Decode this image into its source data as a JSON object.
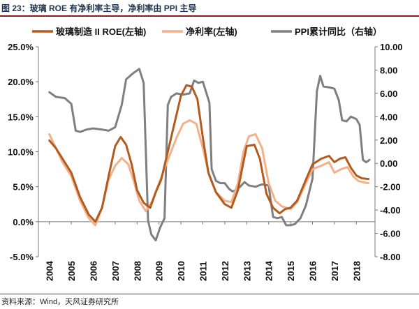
{
  "figure": {
    "title": "图 23：玻璃 ROE 有净利率主导，净利率由 PPI 主导",
    "source": "资料来源：Wind，天风证券研究所"
  },
  "chart_data": {
    "type": "line",
    "title": "",
    "xlabel": "",
    "ylabel": "",
    "x_labels": [
      "2004",
      "2005",
      "2006",
      "2007",
      "2008",
      "2009",
      "2010",
      "2011",
      "2012",
      "2013",
      "2014",
      "2015",
      "2016",
      "2017",
      "2018"
    ],
    "y_left": {
      "min": -0.05,
      "max": 0.25,
      "ticks": [
        "-5.0%",
        "0.0%",
        "5.0%",
        "10.0%",
        "15.0%",
        "20.0%",
        "25.0%"
      ]
    },
    "y_right": {
      "min": -8,
      "max": 10,
      "ticks": [
        "-8.00",
        "-6.00",
        "-4.00",
        "-2.00",
        "0.00",
        "2.00",
        "4.00",
        "6.00",
        "8.00",
        "10.00"
      ]
    },
    "legend_position": "top",
    "grid": false,
    "series": [
      {
        "name": "玻璃制造 II ROE(左轴)",
        "axis": "left",
        "color": "#b35a1f",
        "points": [
          [
            2004.0,
            0.116
          ],
          [
            2004.3,
            0.105
          ],
          [
            2004.6,
            0.09
          ],
          [
            2005.0,
            0.07
          ],
          [
            2005.4,
            0.035
          ],
          [
            2005.8,
            0.01
          ],
          [
            2006.1,
            0.0
          ],
          [
            2006.4,
            0.02
          ],
          [
            2006.7,
            0.065
          ],
          [
            2007.0,
            0.108
          ],
          [
            2007.25,
            0.121
          ],
          [
            2007.5,
            0.11
          ],
          [
            2007.75,
            0.082
          ],
          [
            2008.0,
            0.045
          ],
          [
            2008.3,
            0.027
          ],
          [
            2008.6,
            0.02
          ],
          [
            2008.85,
            0.042
          ],
          [
            2009.1,
            0.06
          ],
          [
            2009.4,
            0.1
          ],
          [
            2009.7,
            0.14
          ],
          [
            2010.0,
            0.18
          ],
          [
            2010.25,
            0.195
          ],
          [
            2010.5,
            0.193
          ],
          [
            2010.75,
            0.175
          ],
          [
            2011.0,
            0.12
          ],
          [
            2011.25,
            0.07
          ],
          [
            2011.6,
            0.042
          ],
          [
            2012.0,
            0.025
          ],
          [
            2012.3,
            0.02
          ],
          [
            2012.6,
            0.045
          ],
          [
            2012.85,
            0.085
          ],
          [
            2013.0,
            0.108
          ],
          [
            2013.35,
            0.11
          ],
          [
            2013.6,
            0.09
          ],
          [
            2013.9,
            0.04
          ],
          [
            2014.2,
            0.02
          ],
          [
            2014.5,
            0.012
          ],
          [
            2014.75,
            0.018
          ],
          [
            2015.0,
            0.02
          ],
          [
            2015.3,
            0.03
          ],
          [
            2015.7,
            0.06
          ],
          [
            2016.0,
            0.082
          ],
          [
            2016.4,
            0.09
          ],
          [
            2016.75,
            0.094
          ],
          [
            2017.0,
            0.085
          ],
          [
            2017.25,
            0.09
          ],
          [
            2017.5,
            0.092
          ],
          [
            2017.75,
            0.077
          ],
          [
            2018.0,
            0.066
          ],
          [
            2018.25,
            0.062
          ],
          [
            2018.55,
            0.061
          ]
        ]
      },
      {
        "name": "净利率(左轴)",
        "axis": "left",
        "color": "#f2b18a",
        "points": [
          [
            2004.0,
            0.125
          ],
          [
            2004.3,
            0.105
          ],
          [
            2004.6,
            0.085
          ],
          [
            2005.0,
            0.065
          ],
          [
            2005.4,
            0.03
          ],
          [
            2005.8,
            0.005
          ],
          [
            2006.1,
            -0.005
          ],
          [
            2006.4,
            0.02
          ],
          [
            2006.7,
            0.06
          ],
          [
            2007.0,
            0.08
          ],
          [
            2007.3,
            0.091
          ],
          [
            2007.6,
            0.082
          ],
          [
            2007.85,
            0.058
          ],
          [
            2008.1,
            0.03
          ],
          [
            2008.4,
            0.015
          ],
          [
            2008.7,
            0.03
          ],
          [
            2009.0,
            0.055
          ],
          [
            2009.4,
            0.088
          ],
          [
            2009.8,
            0.12
          ],
          [
            2010.1,
            0.14
          ],
          [
            2010.4,
            0.145
          ],
          [
            2010.7,
            0.14
          ],
          [
            2011.0,
            0.105
          ],
          [
            2011.3,
            0.065
          ],
          [
            2011.6,
            0.042
          ],
          [
            2012.0,
            0.03
          ],
          [
            2012.3,
            0.028
          ],
          [
            2012.6,
            0.055
          ],
          [
            2012.85,
            0.1
          ],
          [
            2013.1,
            0.122
          ],
          [
            2013.4,
            0.125
          ],
          [
            2013.7,
            0.105
          ],
          [
            2014.0,
            0.055
          ],
          [
            2014.3,
            0.03
          ],
          [
            2014.6,
            0.022
          ],
          [
            2014.8,
            0.02
          ],
          [
            2015.0,
            0.018
          ],
          [
            2015.3,
            0.028
          ],
          [
            2015.7,
            0.055
          ],
          [
            2016.0,
            0.075
          ],
          [
            2016.4,
            0.08
          ],
          [
            2016.75,
            0.085
          ],
          [
            2017.0,
            0.07
          ],
          [
            2017.3,
            0.075
          ],
          [
            2017.6,
            0.078
          ],
          [
            2017.85,
            0.065
          ],
          [
            2018.1,
            0.058
          ],
          [
            2018.35,
            0.056
          ],
          [
            2018.55,
            0.055
          ]
        ]
      },
      {
        "name": "PPI累计同比（右轴）",
        "axis": "right",
        "color": "#7f7f7f",
        "points": [
          [
            2004.0,
            6.1
          ],
          [
            2004.3,
            5.7
          ],
          [
            2004.7,
            5.6
          ],
          [
            2005.0,
            5.1
          ],
          [
            2005.2,
            2.8
          ],
          [
            2005.4,
            2.7
          ],
          [
            2005.7,
            2.9
          ],
          [
            2006.0,
            3.0
          ],
          [
            2006.4,
            2.9
          ],
          [
            2006.7,
            2.8
          ],
          [
            2007.0,
            3.1
          ],
          [
            2007.3,
            5.0
          ],
          [
            2007.5,
            7.2
          ],
          [
            2007.8,
            7.7
          ],
          [
            2008.1,
            8.1
          ],
          [
            2008.3,
            6.9
          ],
          [
            2008.5,
            -4.9
          ],
          [
            2008.65,
            -6.1
          ],
          [
            2008.85,
            -6.6
          ],
          [
            2009.05,
            -5.5
          ],
          [
            2009.25,
            -4.7
          ],
          [
            2009.4,
            5.0
          ],
          [
            2009.55,
            5.7
          ],
          [
            2009.8,
            6.0
          ],
          [
            2010.1,
            5.9
          ],
          [
            2010.4,
            6.0
          ],
          [
            2010.6,
            7.1
          ],
          [
            2010.8,
            6.9
          ],
          [
            2011.0,
            7.0
          ],
          [
            2011.3,
            5.2
          ],
          [
            2011.4,
            -0.5
          ],
          [
            2011.6,
            -1.5
          ],
          [
            2011.8,
            -1.7
          ],
          [
            2012.0,
            -1.7
          ],
          [
            2012.2,
            -2.2
          ],
          [
            2012.35,
            -2.4
          ],
          [
            2012.5,
            -2.3
          ],
          [
            2012.7,
            -2.0
          ],
          [
            2012.9,
            -1.6
          ],
          [
            2013.1,
            -1.9
          ],
          [
            2013.4,
            -2.0
          ],
          [
            2013.7,
            -1.8
          ],
          [
            2014.0,
            -1.9
          ],
          [
            2014.2,
            -4.6
          ],
          [
            2014.4,
            -4.7
          ],
          [
            2014.6,
            -4.6
          ],
          [
            2014.8,
            -5.3
          ],
          [
            2015.0,
            -5.3
          ],
          [
            2015.2,
            -5.2
          ],
          [
            2015.45,
            -4.7
          ],
          [
            2015.7,
            -3.6
          ],
          [
            2016.0,
            -1.3
          ],
          [
            2016.2,
            6.2
          ],
          [
            2016.35,
            7.5
          ],
          [
            2016.5,
            6.6
          ],
          [
            2016.8,
            6.5
          ],
          [
            2017.0,
            6.4
          ],
          [
            2017.2,
            5.4
          ],
          [
            2017.35,
            3.7
          ],
          [
            2017.55,
            3.6
          ],
          [
            2017.75,
            4.0
          ],
          [
            2018.0,
            3.8
          ],
          [
            2018.15,
            3.3
          ],
          [
            2018.3,
            0.3
          ],
          [
            2018.45,
            0.1
          ],
          [
            2018.6,
            0.3
          ]
        ]
      }
    ]
  }
}
